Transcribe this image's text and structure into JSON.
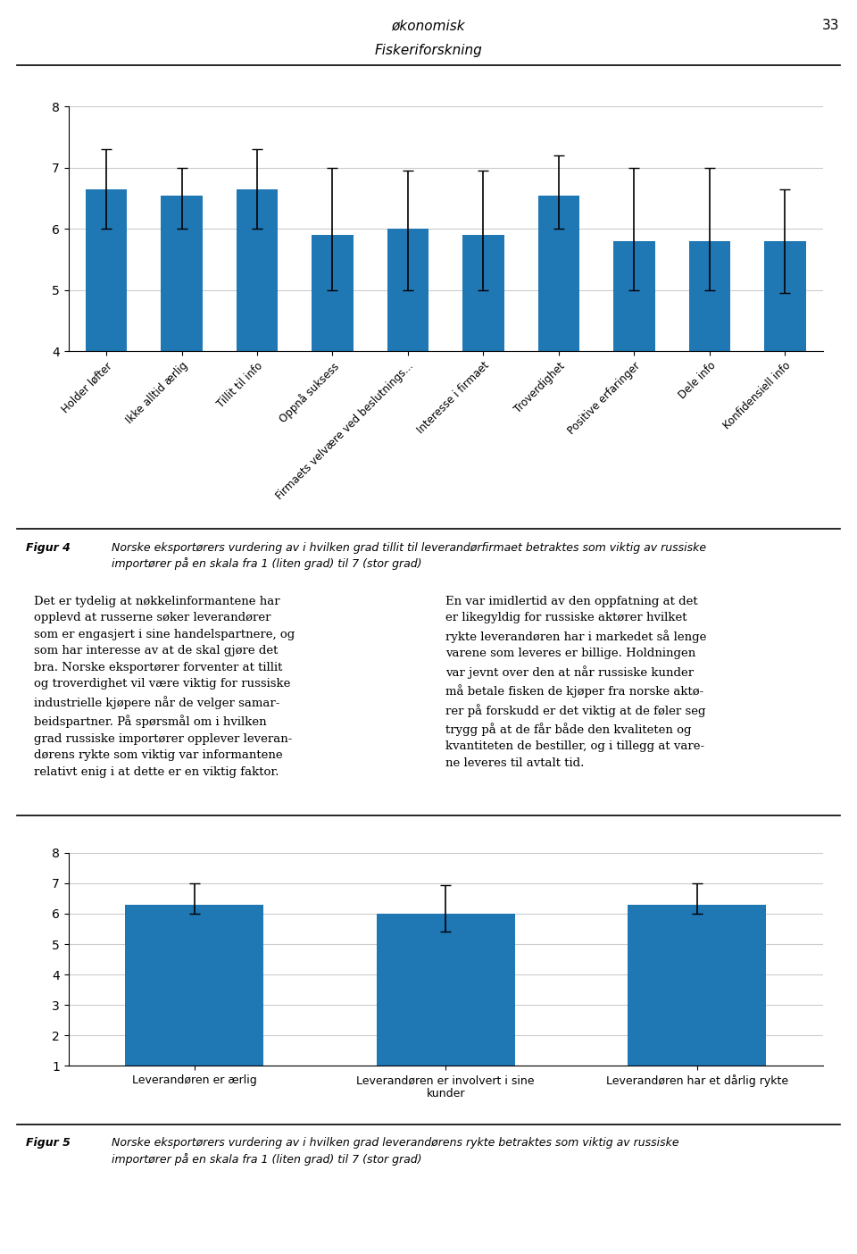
{
  "annotations": [
    "økonomisk",
    "Fiskeriforskning",
    "33",
    "Det er tydelig at nøkkelinformantene har\nopplevd at russerne søker leverandører\nsom er engasjert i sine handelspartnere, og\nsom har interesse av at de skal gjøre det\nbra. Norske eksportører forventer at tillit\nog troverdighet vil være viktig for russiske\nindustrielle kjøpere når de velger samar-\nbeidspartner. På spørsmål om i hvilken\ngrad russiske importører opplever leveran-\ndørens rykte som viktig var informantene\nrelativt enig i at dette er en viktig faktor.",
    "En var imidlertid av den oppfatning at det\ner likegyldig for russiske aktører hvilket\nrykte leverandøren har i markedet så lenge\nvarene som leveres er billige. Holdningen\nvar jevnt over den at når russiske kunder\nmå betale fisken de kjøper fra norske aktø-\nrer på forskudd er det viktig at de føler seg\ntrygg på at de får både den kvaliteten og\nkvantiteten de bestiller, og i tillegg at vare-\nne leveres til avtalt tid."
  ],
  "chart_data": [
    {
      "type": "bar",
      "categories": [
        "Holder løfter",
        "Ikke alltid ærlig",
        "Tillit til info",
        "Oppnå suksess",
        "Firmaets velvære ved beslutnings...",
        "Interesse i firmaet",
        "Troverdighet",
        "Positive erfaringer",
        "Dele info",
        "Konfidensiell info"
      ],
      "values": [
        6.65,
        6.55,
        6.65,
        5.9,
        6.0,
        5.9,
        6.55,
        5.8,
        5.8,
        5.8
      ],
      "err_low": [
        0.65,
        0.55,
        0.65,
        0.9,
        1.0,
        0.9,
        0.55,
        0.8,
        0.8,
        0.85
      ],
      "err_high": [
        0.65,
        0.45,
        0.65,
        1.1,
        0.95,
        1.05,
        0.65,
        1.2,
        1.2,
        0.85
      ],
      "ylim": [
        4,
        8
      ],
      "yticks": [
        4,
        5,
        6,
        7,
        8
      ],
      "grid": true,
      "annotations": [
        "Figur 4",
        "Norske eksportørers vurdering av i hvilken grad tillit til leverandørfirmaet betraktes som viktig av russiske\nimportører på en skala fra 1 (liten grad) til 7 (stor grad)"
      ]
    },
    {
      "type": "bar",
      "categories": [
        "Leverandøren er ærlig",
        "Leverandøren er involvert i sine\nkunder",
        "Leverandøren har et dårlig rykte"
      ],
      "values": [
        6.3,
        6.0,
        6.3
      ],
      "err_low": [
        0.3,
        0.6,
        0.3
      ],
      "err_high": [
        0.7,
        0.95,
        0.7
      ],
      "ylim": [
        1,
        8
      ],
      "yticks": [
        1,
        2,
        3,
        4,
        5,
        6,
        7,
        8
      ],
      "grid": true,
      "annotations": [
        "Figur 5",
        "Norske eksportørers vurdering av i hvilken grad leverandørens rykte betraktes som viktig av russiske\nimportører på en skala fra 1 (liten grad) til 7 (stor grad)"
      ]
    }
  ]
}
